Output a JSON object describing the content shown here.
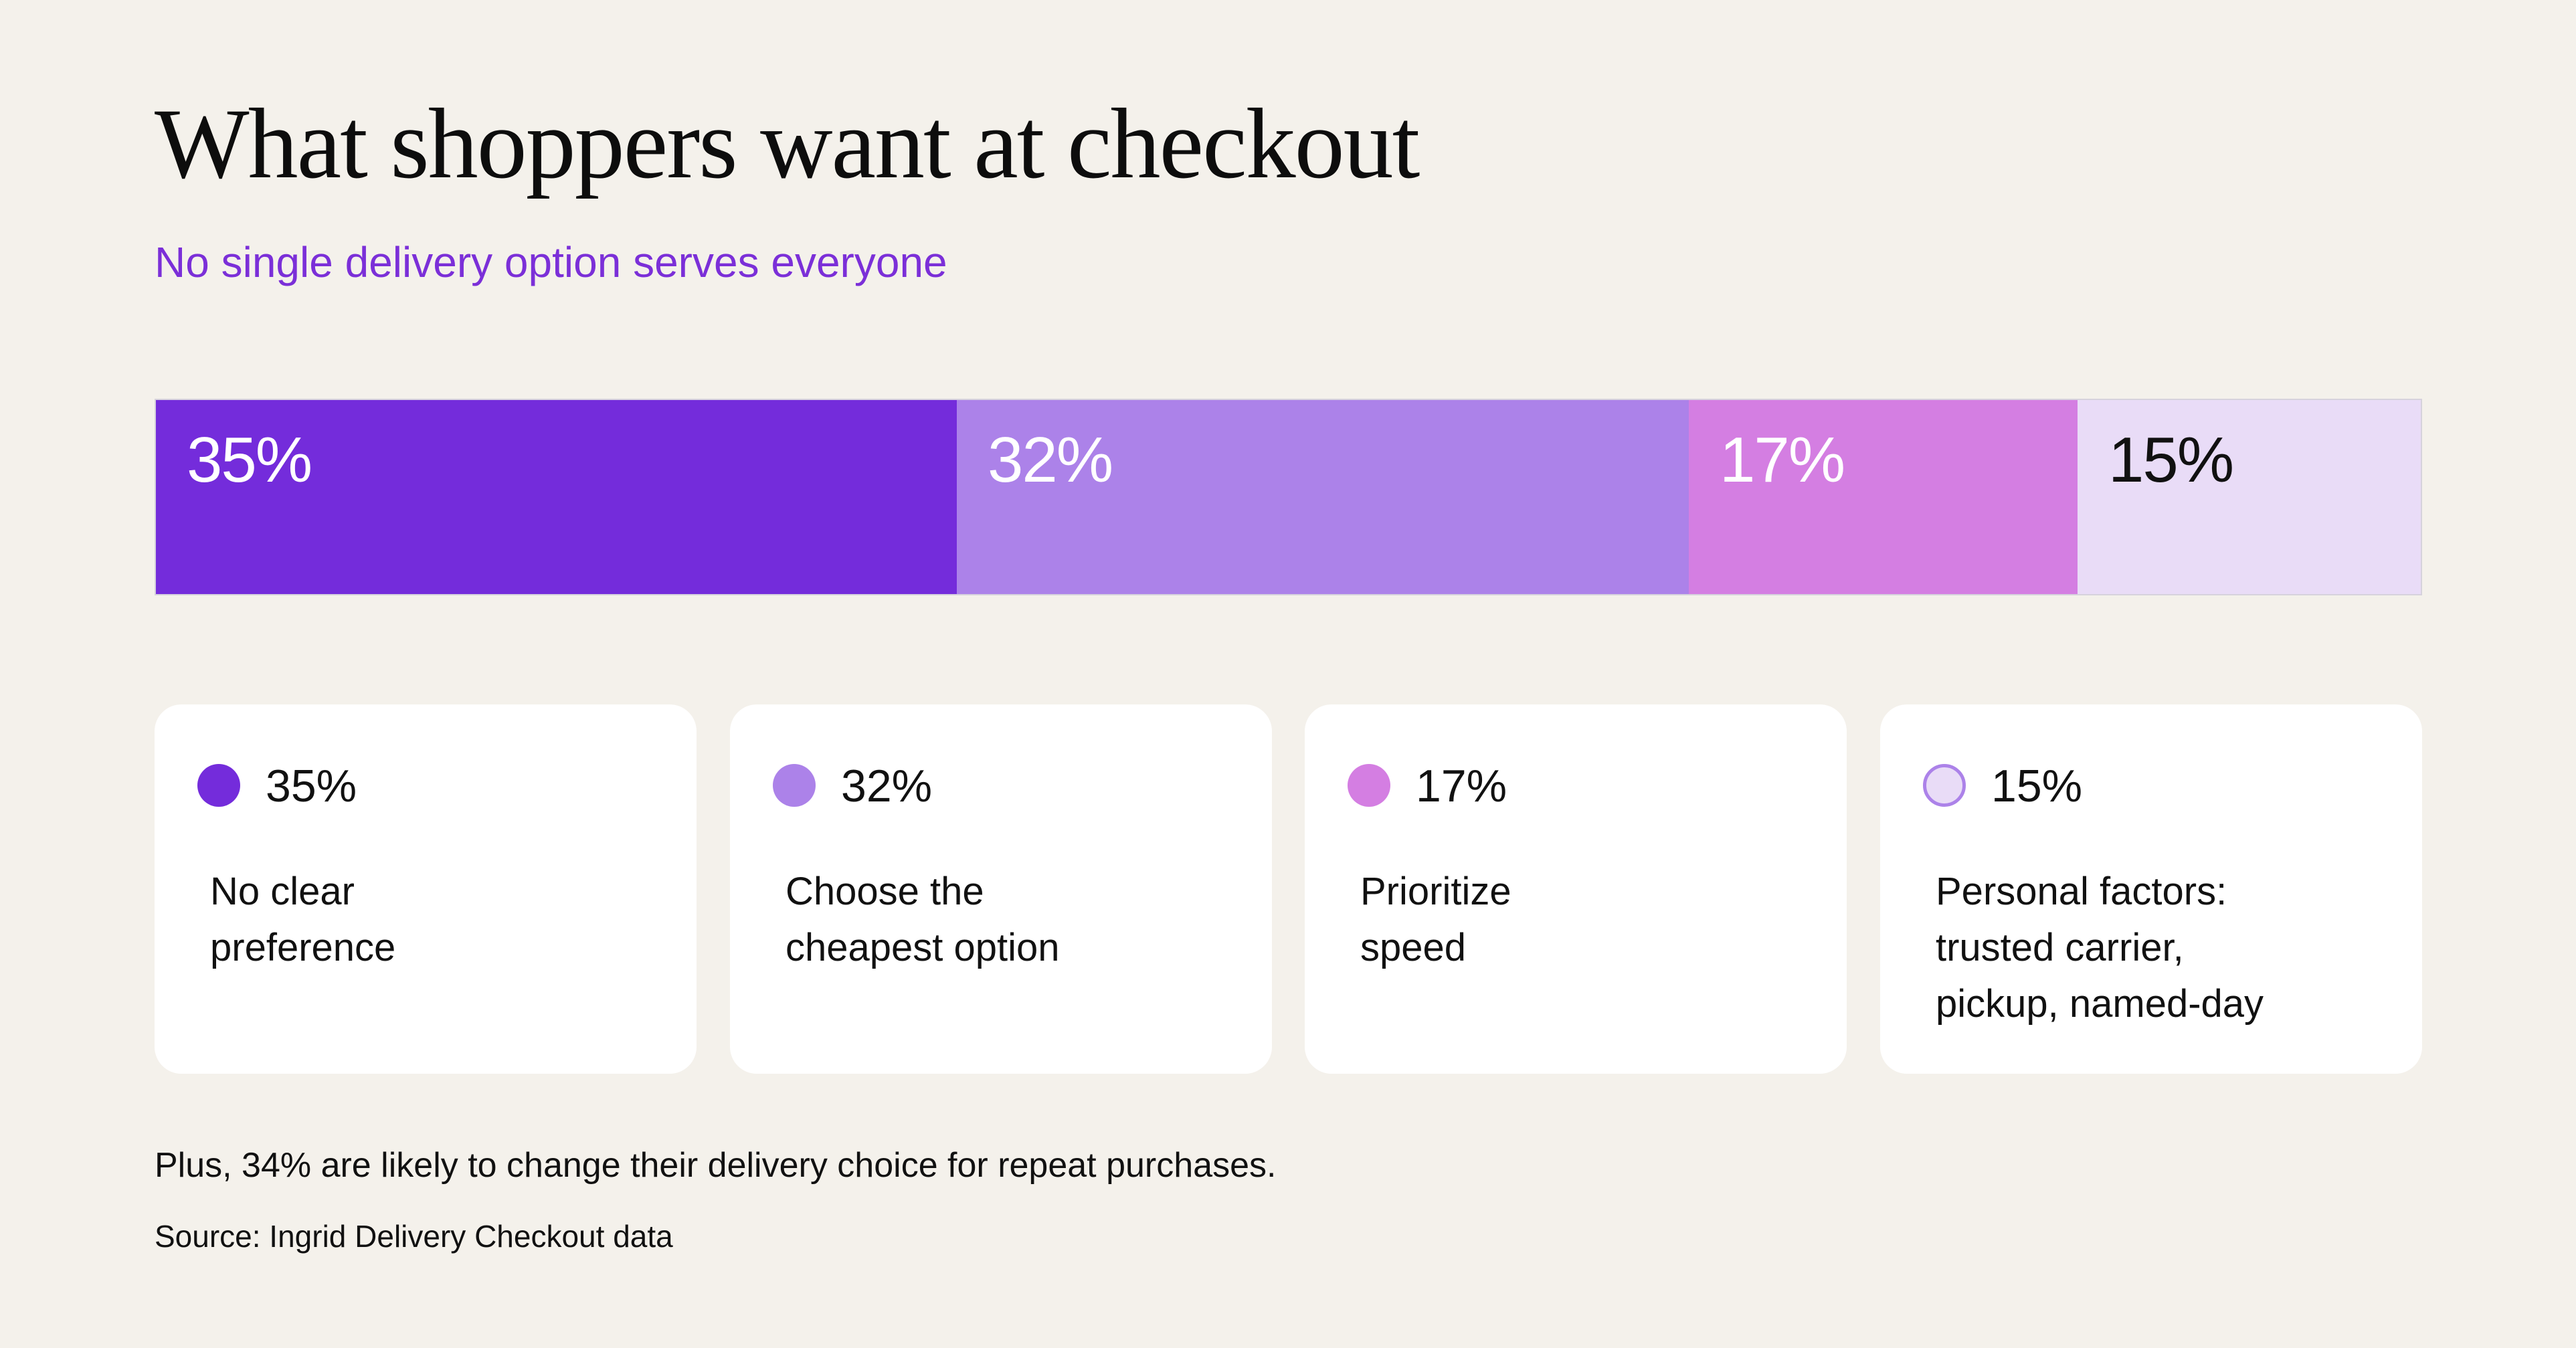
{
  "title": "What shoppers want at checkout",
  "subtitle": "No single delivery option serves everyone",
  "colors": {
    "background": "#f4f1eb",
    "subtitle": "#7b2fd8",
    "card_background": "#ffffff"
  },
  "chart_data": {
    "type": "bar",
    "orientation": "horizontal-stacked",
    "title": "What shoppers want at checkout",
    "subtitle": "No single delivery option serves everyone",
    "xlabel": "",
    "ylabel": "",
    "grid": false,
    "legend": "below",
    "unit": "%",
    "series": [
      {
        "name": "No clear preference",
        "value": 35,
        "label": "35%",
        "color": "#742cdb",
        "text_color": "#ffffff",
        "desc_lines": [
          "No clear",
          "preference"
        ]
      },
      {
        "name": "Choose the cheapest option",
        "value": 32,
        "label": "32%",
        "color": "#ac82e9",
        "text_color": "#ffffff",
        "desc_lines": [
          "Choose the",
          "cheapest option"
        ]
      },
      {
        "name": "Prioritize speed",
        "value": 17,
        "label": "17%",
        "color": "#d47ee2",
        "text_color": "#ffffff",
        "desc_lines": [
          "Prioritize",
          "speed"
        ]
      },
      {
        "name": "Personal factors: trusted carrier, pickup, named-day",
        "value": 15,
        "label": "15%",
        "color": "#e9dcf7",
        "text_color": "#111111",
        "dot_border": "#ac82e9",
        "desc_lines": [
          "Personal factors:",
          "trusted carrier,",
          "pickup, named-day"
        ]
      }
    ]
  },
  "footnote": "Plus, 34% are likely to change their delivery choice for repeat purchases.",
  "source": "Source: Ingrid Delivery Checkout data"
}
